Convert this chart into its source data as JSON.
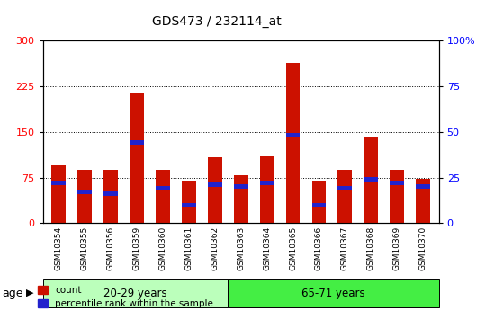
{
  "title": "GDS473 / 232114_at",
  "samples": [
    "GSM10354",
    "GSM10355",
    "GSM10356",
    "GSM10359",
    "GSM10360",
    "GSM10361",
    "GSM10362",
    "GSM10363",
    "GSM10364",
    "GSM10365",
    "GSM10366",
    "GSM10367",
    "GSM10368",
    "GSM10369",
    "GSM10370"
  ],
  "counts": [
    95,
    88,
    88,
    213,
    88,
    70,
    108,
    78,
    110,
    263,
    70,
    88,
    142,
    88,
    73
  ],
  "percentile_ranks": [
    22,
    17,
    16,
    44,
    19,
    10,
    21,
    20,
    22,
    48,
    10,
    19,
    24,
    22,
    20
  ],
  "groups": [
    {
      "label": "20-29 years",
      "start": 0,
      "end": 7,
      "color": "#bbffbb"
    },
    {
      "label": "65-71 years",
      "start": 7,
      "end": 15,
      "color": "#44ee44"
    }
  ],
  "bar_color": "#cc1100",
  "pct_color": "#2222cc",
  "ylim_left": [
    0,
    300
  ],
  "ylim_right": [
    0,
    100
  ],
  "yticks_left": [
    0,
    75,
    150,
    225,
    300
  ],
  "yticks_right": [
    0,
    25,
    50,
    75,
    100
  ],
  "age_label": "age",
  "legend_count": "count",
  "legend_pct": "percentile rank within the sample",
  "ticklabel_bg": "#cccccc",
  "plot_bg": "#ffffff"
}
